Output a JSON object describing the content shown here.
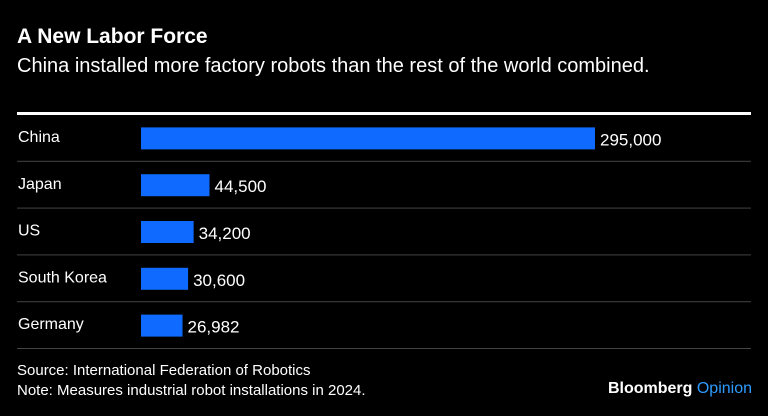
{
  "header": {
    "title": "A New Labor Force",
    "subtitle": "China installed more factory robots than the rest of the world combined."
  },
  "chart_data": {
    "type": "bar",
    "orientation": "horizontal",
    "categories": [
      "China",
      "Japan",
      "US",
      "South Korea",
      "Germany"
    ],
    "values": [
      295000,
      44500,
      34200,
      30600,
      26982
    ],
    "value_labels": [
      "295,000",
      "44,500",
      "34,200",
      "30,600",
      "26,982"
    ],
    "bar_color": "#0f6bff",
    "grid": false,
    "legend": "none"
  },
  "footer": {
    "source": "Source: International Federation of Robotics",
    "note": "Note: Measures industrial robot installations in 2024.",
    "brand_primary": "Bloomberg",
    "brand_secondary": "Opinion"
  },
  "colors": {
    "background": "#000000",
    "text": "#ffffff",
    "bar": "#0f6bff",
    "brand_accent": "#2e9bff",
    "separator": "#444444"
  }
}
